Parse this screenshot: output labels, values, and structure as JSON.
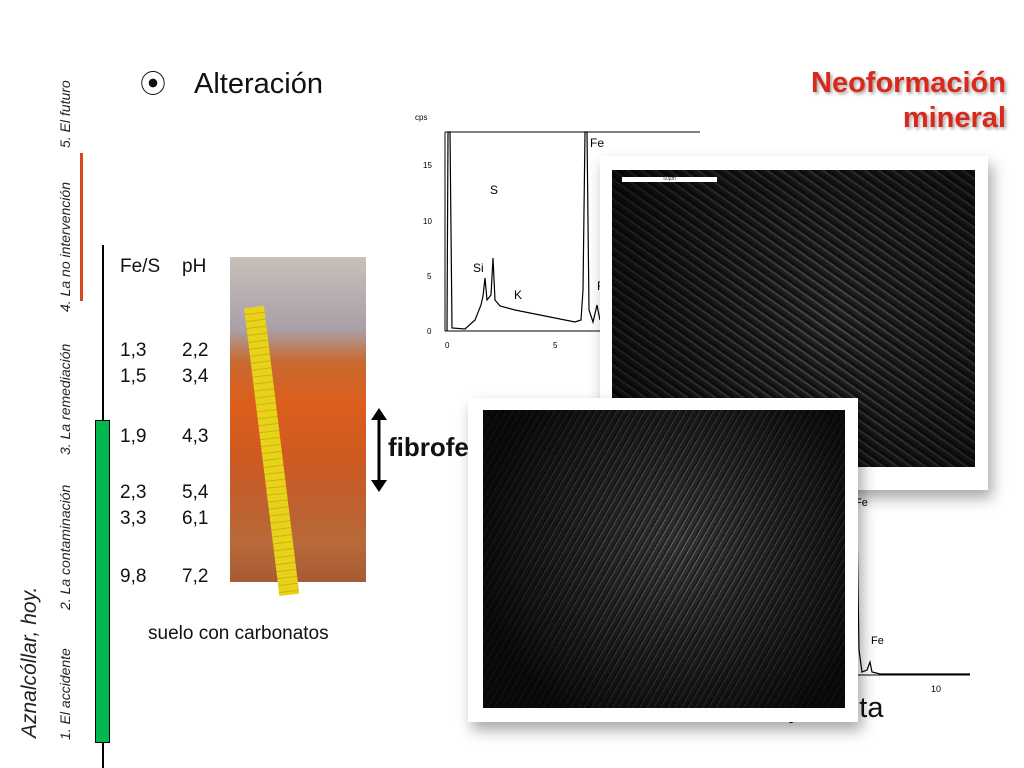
{
  "sidebar": {
    "title": "Aznalcóllar, hoy.",
    "sections": [
      "1. El accidente",
      "2. La contaminación",
      "3. La remediación",
      "4. La no intervención",
      "5. El futuro"
    ],
    "active_color": "#00b84f",
    "highlight_color": "#d9481c"
  },
  "slide": {
    "bullet": "⦿",
    "title": "Alteración",
    "headline": [
      "Neoformación",
      "mineral"
    ],
    "table": {
      "headers": [
        "Fe/S",
        "pH"
      ],
      "rows": [
        [
          "1,3",
          "2,2"
        ],
        [
          "1,5",
          "3,4"
        ],
        [
          "1,9",
          "4,3"
        ],
        [
          "2,3",
          "5,4"
        ],
        [
          "3,3",
          "6,1"
        ],
        [
          "9,8",
          "7,2"
        ]
      ]
    },
    "soil_caption": "suelo con carbonatos",
    "mineral_label": "fibroferrita ?",
    "bottom_label": "jarosita"
  },
  "spectrum1": {
    "yunit": "cps",
    "yticks": [
      "0",
      "5",
      "10",
      "15"
    ],
    "xticks": [
      "0",
      "5"
    ],
    "peaks": [
      "Si",
      "S",
      "K",
      "Fe",
      "F"
    ]
  },
  "spectrum2": {
    "xticks": [
      "10"
    ],
    "peaks": [
      "Fe",
      "Fe"
    ]
  },
  "sem1": {
    "scale": "50µm"
  }
}
